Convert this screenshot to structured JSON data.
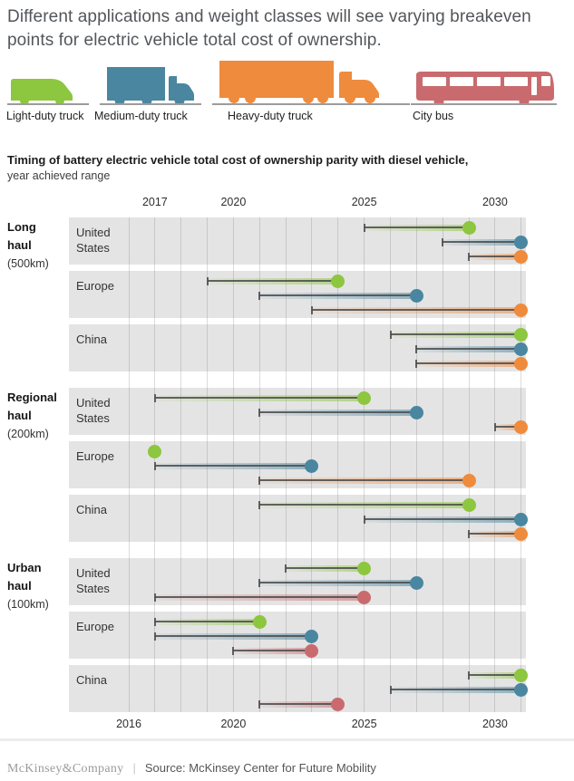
{
  "header": {
    "title": "Different applications and weight classes will see varying breakeven points for electric vehicle total cost of ownership."
  },
  "legend": {
    "items": [
      {
        "id": "light-duty-truck",
        "label": "Light-duty truck"
      },
      {
        "id": "medium-duty-truck",
        "label": "Medium-duty truck"
      },
      {
        "id": "heavy-duty-truck",
        "label": "Heavy-duty truck"
      },
      {
        "id": "city-bus",
        "label": "City bus"
      }
    ]
  },
  "colors": {
    "light-duty-truck": "#8dc63f",
    "medium-duty-truck": "#4a86a0",
    "heavy-duty-truck": "#ef8b3d",
    "city-bus": "#c96b6e",
    "band": "#e4e4e4",
    "whisker": "#4a4a4a"
  },
  "chart_data": {
    "type": "scatter",
    "subtype": "dumbbell-range (year-range dot plot)",
    "title": "Timing of battery electric vehicle total cost of ownership parity with diesel vehicle,",
    "subtitle": "year achieved range",
    "x_axis": {
      "min": 2016,
      "max": 2031,
      "top_ticks": [
        2017,
        2020,
        2025,
        2030
      ],
      "bottom_ticks": [
        2016,
        2020,
        2025,
        2030
      ],
      "grid": "yearly vertical gridlines"
    },
    "groups": [
      {
        "name": "Long haul",
        "distance": "(500km)",
        "regions": [
          {
            "name": "United States",
            "values": [
              {
                "vehicle": "light-duty-truck",
                "start": 2025,
                "end": 2029
              },
              {
                "vehicle": "medium-duty-truck",
                "start": 2028,
                "end": 2031
              },
              {
                "vehicle": "heavy-duty-truck",
                "start": 2029,
                "end": 2031
              }
            ]
          },
          {
            "name": "Europe",
            "values": [
              {
                "vehicle": "light-duty-truck",
                "start": 2019,
                "end": 2024
              },
              {
                "vehicle": "medium-duty-truck",
                "start": 2021,
                "end": 2027
              },
              {
                "vehicle": "heavy-duty-truck",
                "start": 2023,
                "end": 2031
              }
            ]
          },
          {
            "name": "China",
            "values": [
              {
                "vehicle": "light-duty-truck",
                "start": 2026,
                "end": 2031
              },
              {
                "vehicle": "medium-duty-truck",
                "start": 2027,
                "end": 2031
              },
              {
                "vehicle": "heavy-duty-truck",
                "start": 2027,
                "end": 2031
              }
            ]
          }
        ]
      },
      {
        "name": "Regional haul",
        "distance": "(200km)",
        "regions": [
          {
            "name": "United States",
            "values": [
              {
                "vehicle": "light-duty-truck",
                "start": 2017,
                "end": 2025
              },
              {
                "vehicle": "medium-duty-truck",
                "start": 2021,
                "end": 2027
              },
              {
                "vehicle": "heavy-duty-truck",
                "start": 2030,
                "end": 2031
              }
            ]
          },
          {
            "name": "Europe",
            "values": [
              {
                "vehicle": "light-duty-truck",
                "start": 2017,
                "end": 2017
              },
              {
                "vehicle": "medium-duty-truck",
                "start": 2017,
                "end": 2023
              },
              {
                "vehicle": "heavy-duty-truck",
                "start": 2021,
                "end": 2029
              }
            ]
          },
          {
            "name": "China",
            "values": [
              {
                "vehicle": "light-duty-truck",
                "start": 2021,
                "end": 2029
              },
              {
                "vehicle": "medium-duty-truck",
                "start": 2025,
                "end": 2031
              },
              {
                "vehicle": "heavy-duty-truck",
                "start": 2029,
                "end": 2031
              }
            ]
          }
        ]
      },
      {
        "name": "Urban haul",
        "distance": "(100km)",
        "regions": [
          {
            "name": "United States",
            "values": [
              {
                "vehicle": "light-duty-truck",
                "start": 2022,
                "end": 2025
              },
              {
                "vehicle": "medium-duty-truck",
                "start": 2021,
                "end": 2027
              },
              {
                "vehicle": "city-bus",
                "start": 2017,
                "end": 2025
              }
            ]
          },
          {
            "name": "Europe",
            "values": [
              {
                "vehicle": "light-duty-truck",
                "start": 2017,
                "end": 2021
              },
              {
                "vehicle": "medium-duty-truck",
                "start": 2017,
                "end": 2023
              },
              {
                "vehicle": "city-bus",
                "start": 2020,
                "end": 2023
              }
            ]
          },
          {
            "name": "China",
            "values": [
              {
                "vehicle": "light-duty-truck",
                "start": 2029,
                "end": 2031
              },
              {
                "vehicle": "medium-duty-truck",
                "start": 2026,
                "end": 2031
              },
              {
                "vehicle": "city-bus",
                "start": 2021,
                "end": 2024
              }
            ]
          }
        ]
      }
    ]
  },
  "footer": {
    "brand": "McKinsey&Company",
    "separator": "|",
    "source": "Source: McKinsey Center for Future Mobility"
  }
}
